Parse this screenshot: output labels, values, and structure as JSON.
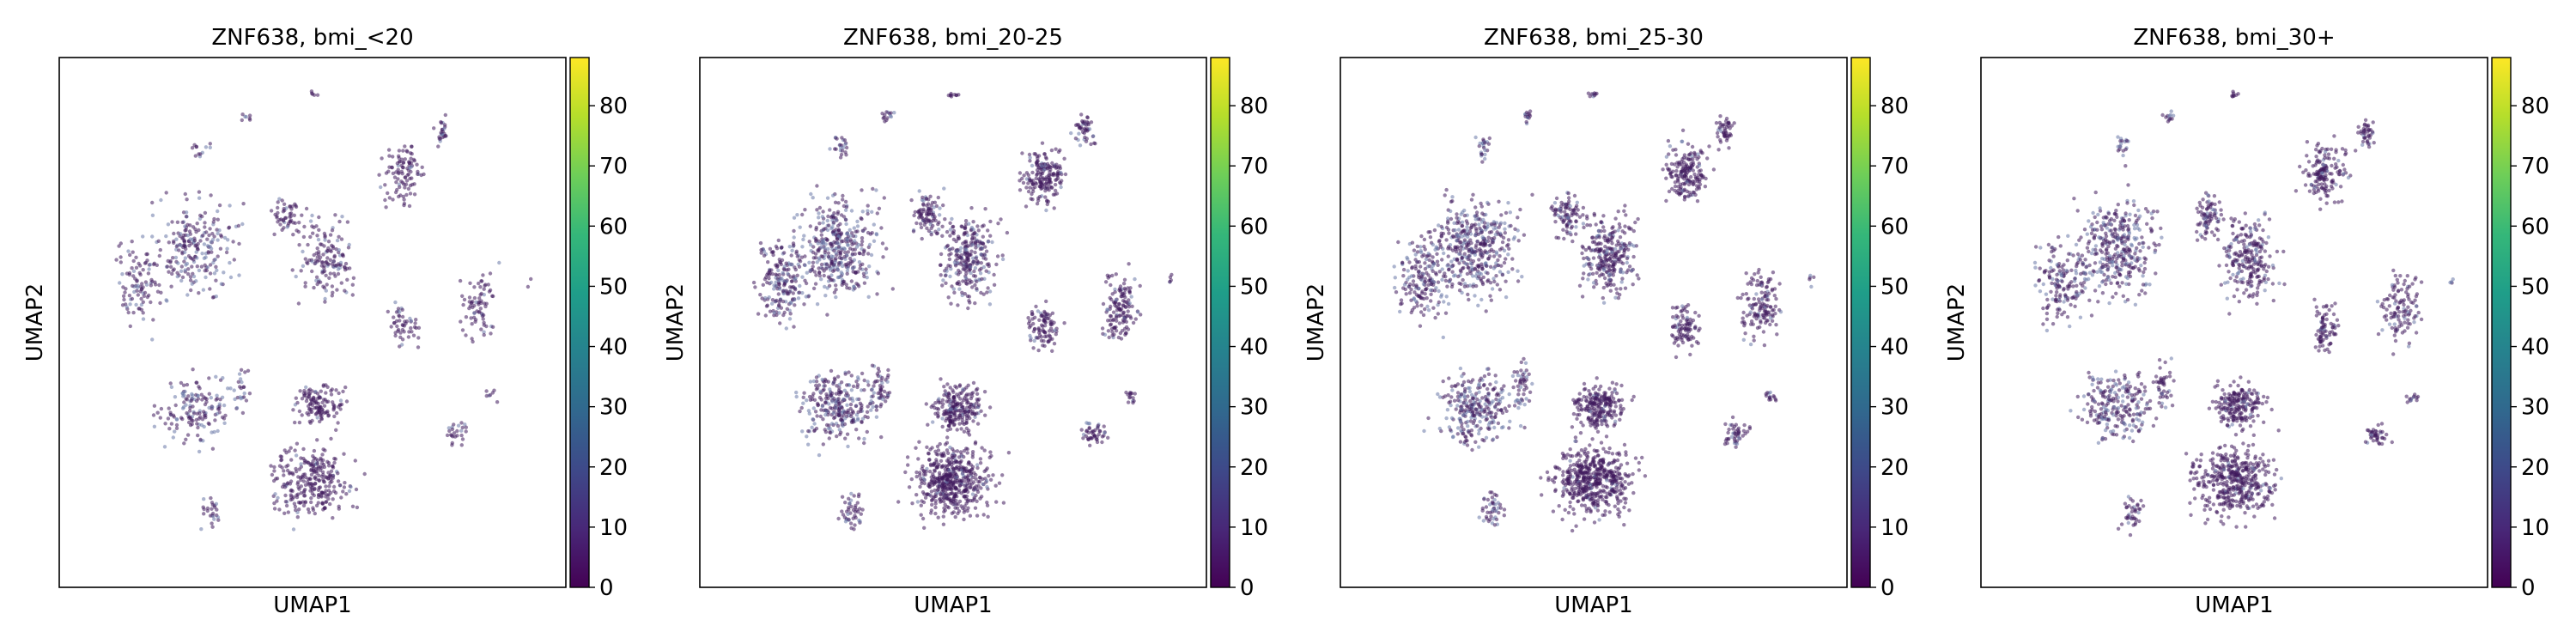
{
  "chart_data": [
    {
      "type": "scatter",
      "title": "ZNF638, bmi_<20",
      "xlabel": "UMAP1",
      "ylabel": "UMAP2",
      "colorbar": {
        "label": "",
        "range": [
          0,
          88
        ],
        "ticks": [
          0,
          10,
          20,
          30,
          40,
          50,
          60,
          70,
          80
        ],
        "colormap": "viridis"
      },
      "point_density": 0.55
    },
    {
      "type": "scatter",
      "title": "ZNF638, bmi_20-25",
      "xlabel": "UMAP1",
      "ylabel": "UMAP2",
      "colorbar": {
        "label": "",
        "range": [
          0,
          88
        ],
        "ticks": [
          0,
          10,
          20,
          30,
          40,
          50,
          60,
          70,
          80
        ],
        "colormap": "viridis"
      },
      "point_density": 1.0
    },
    {
      "type": "scatter",
      "title": "ZNF638, bmi_25-30",
      "xlabel": "UMAP1",
      "ylabel": "UMAP2",
      "colorbar": {
        "label": "",
        "range": [
          0,
          88
        ],
        "ticks": [
          0,
          10,
          20,
          30,
          40,
          50,
          60,
          70,
          80
        ],
        "colormap": "viridis"
      },
      "point_density": 1.0
    },
    {
      "type": "scatter",
      "title": "ZNF638, bmi_30+",
      "xlabel": "UMAP1",
      "ylabel": "UMAP2",
      "colorbar": {
        "label": "",
        "range": [
          0,
          88
        ],
        "ticks": [
          0,
          10,
          20,
          30,
          40,
          50,
          60,
          70,
          80
        ],
        "colormap": "viridis"
      },
      "point_density": 0.85
    }
  ],
  "colors": {
    "viridis": [
      "#440154",
      "#482878",
      "#3e4989",
      "#31688e",
      "#26828e",
      "#1f9e89",
      "#35b779",
      "#6ece58",
      "#b5de2b",
      "#fde725"
    ],
    "point_dark": "#3f1a5c",
    "point_light": "#6a78a8"
  }
}
